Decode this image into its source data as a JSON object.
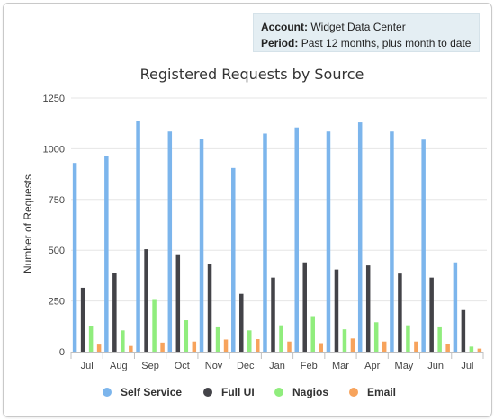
{
  "info_box": {
    "account_label": "Account:",
    "account_value": "Widget Data Center",
    "period_label": "Period:",
    "period_value": "Past 12 months, plus month to date"
  },
  "chart_data": {
    "type": "bar",
    "title": "Registered Requests by Source",
    "xlabel": "",
    "ylabel": "Number of Requests",
    "ylim": [
      0,
      1250
    ],
    "yticks": [
      0,
      250,
      500,
      750,
      1000,
      1250
    ],
    "grid": true,
    "legend_position": "bottom",
    "categories": [
      "Jul",
      "Aug",
      "Sep",
      "Oct",
      "Nov",
      "Dec",
      "Jan",
      "Feb",
      "Mar",
      "Apr",
      "May",
      "Jun",
      "Jul"
    ],
    "series": [
      {
        "name": "Self Service",
        "color": "#7cb5ec",
        "values": [
          930,
          965,
          1135,
          1085,
          1050,
          905,
          1075,
          1105,
          1085,
          1130,
          1085,
          1045,
          440
        ]
      },
      {
        "name": "Full UI",
        "color": "#434348",
        "values": [
          315,
          390,
          505,
          480,
          430,
          285,
          365,
          440,
          405,
          425,
          385,
          365,
          205
        ]
      },
      {
        "name": "Nagios",
        "color": "#90ed7d",
        "values": [
          125,
          105,
          255,
          155,
          120,
          105,
          130,
          175,
          110,
          145,
          130,
          120,
          25
        ]
      },
      {
        "name": "Email",
        "color": "#f7a35c",
        "values": [
          35,
          28,
          45,
          50,
          60,
          62,
          50,
          42,
          65,
          50,
          50,
          38,
          15
        ]
      }
    ]
  }
}
